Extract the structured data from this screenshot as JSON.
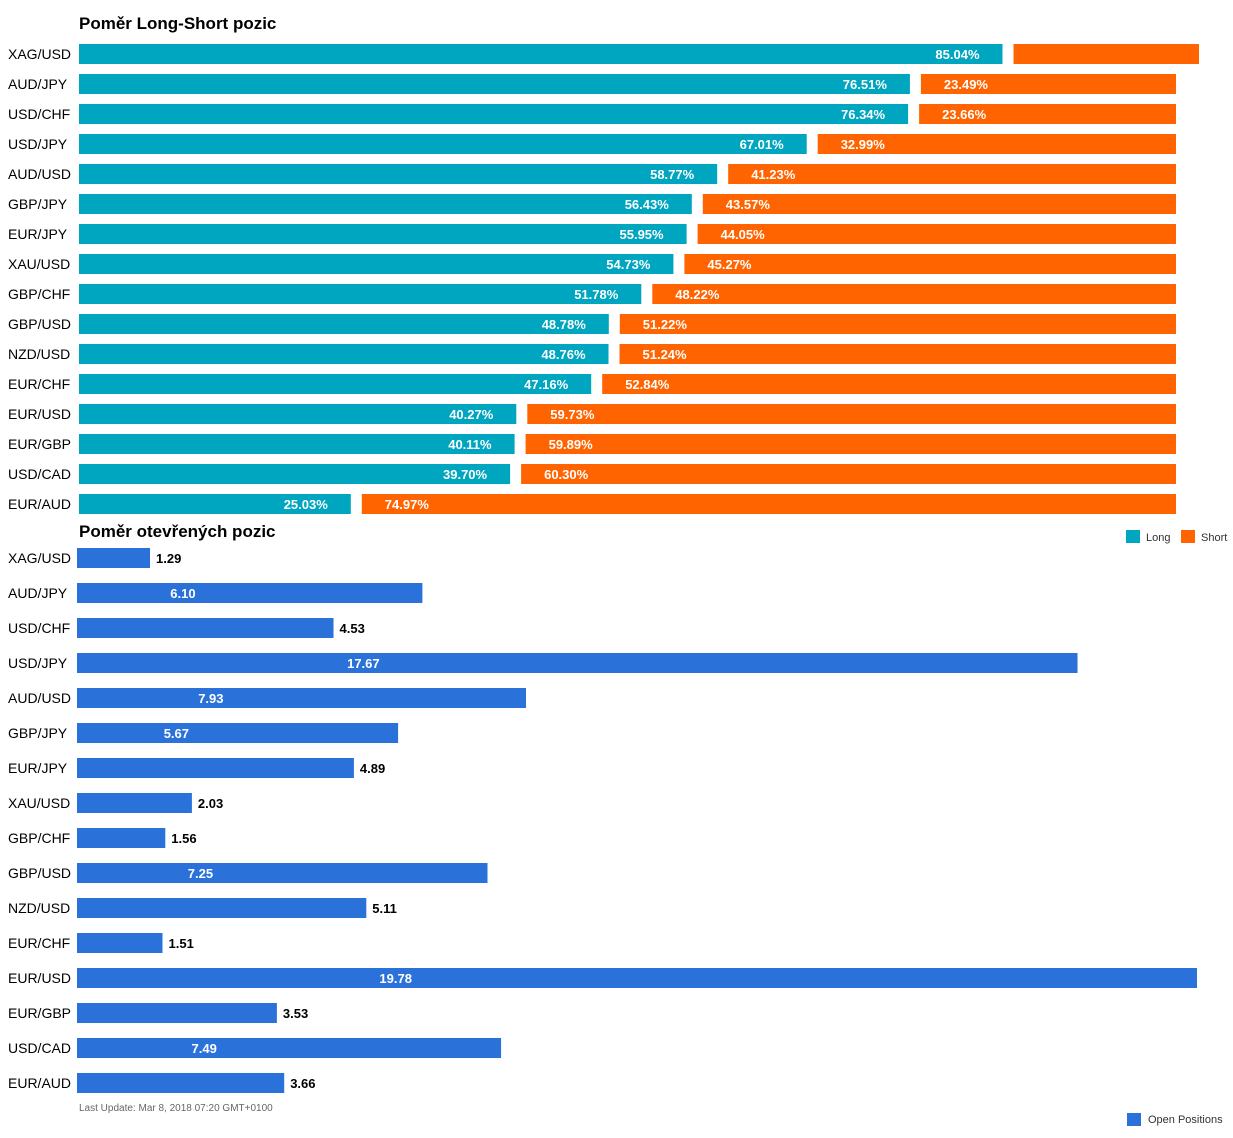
{
  "chart_data": [
    {
      "type": "bar",
      "stacked": true,
      "orientation": "horizontal",
      "title": "Poměr Long-Short pozic",
      "categories": [
        "XAG/USD",
        "AUD/JPY",
        "USD/CHF",
        "USD/JPY",
        "AUD/USD",
        "GBP/JPY",
        "EUR/JPY",
        "XAU/USD",
        "GBP/CHF",
        "GBP/USD",
        "NZD/USD",
        "EUR/CHF",
        "EUR/USD",
        "EUR/GBP",
        "USD/CAD",
        "EUR/AUD"
      ],
      "series": [
        {
          "name": "Long",
          "color": "#00a5bf",
          "values": [
            85.04,
            76.51,
            76.34,
            67.01,
            58.77,
            56.43,
            55.95,
            54.73,
            51.78,
            48.78,
            48.76,
            47.16,
            40.27,
            40.11,
            39.7,
            25.03
          ]
        },
        {
          "name": "Short",
          "color": "#ff6400",
          "values": [
            14.96,
            23.49,
            23.66,
            32.99,
            41.23,
            43.57,
            44.05,
            45.27,
            48.22,
            51.22,
            51.24,
            52.84,
            59.73,
            59.89,
            60.3,
            74.97
          ]
        }
      ],
      "data_labels": {
        "Long": [
          "85.04%",
          "76.51%",
          "76.34%",
          "67.01%",
          "58.77%",
          "56.43%",
          "55.95%",
          "54.73%",
          "51.78%",
          "48.78%",
          "48.76%",
          "47.16%",
          "40.27%",
          "40.11%",
          "39.70%",
          "25.03%"
        ],
        "Short": [
          "",
          "23.49%",
          "23.66%",
          "32.99%",
          "41.23%",
          "43.57%",
          "44.05%",
          "45.27%",
          "48.22%",
          "51.22%",
          "51.24%",
          "52.84%",
          "59.73%",
          "59.89%",
          "60.30%",
          "74.97%"
        ]
      },
      "legend": {
        "position": "bottom-right",
        "items": [
          "Long",
          "Short"
        ]
      },
      "xlim": [
        0,
        100
      ],
      "grid": false
    },
    {
      "type": "bar",
      "orientation": "horizontal",
      "title": "Poměr otevřených pozic",
      "categories": [
        "XAG/USD",
        "AUD/JPY",
        "USD/CHF",
        "USD/JPY",
        "AUD/USD",
        "GBP/JPY",
        "EUR/JPY",
        "XAU/USD",
        "GBP/CHF",
        "GBP/USD",
        "NZD/USD",
        "EUR/CHF",
        "EUR/USD",
        "EUR/GBP",
        "USD/CAD",
        "EUR/AUD"
      ],
      "series": [
        {
          "name": "Open Positions",
          "color": "#2a72d9",
          "values": [
            1.29,
            6.1,
            4.53,
            17.67,
            7.93,
            5.67,
            4.89,
            2.03,
            1.56,
            7.25,
            5.11,
            1.51,
            19.78,
            3.53,
            7.49,
            3.66
          ]
        }
      ],
      "data_labels": [
        "1.29",
        "6.10",
        "4.53",
        "17.67",
        "7.93",
        "5.67",
        "4.89",
        "2.03",
        "1.56",
        "7.25",
        "5.11",
        "1.51",
        "19.78",
        "3.53",
        "7.49",
        "3.66"
      ],
      "legend": {
        "position": "bottom-right",
        "items": [
          "Open Positions"
        ]
      },
      "xlim": [
        0,
        19.78
      ],
      "grid": false
    }
  ],
  "footer": {
    "last_update": "Last Update: Mar 8, 2018 07:20 GMT+0100"
  }
}
